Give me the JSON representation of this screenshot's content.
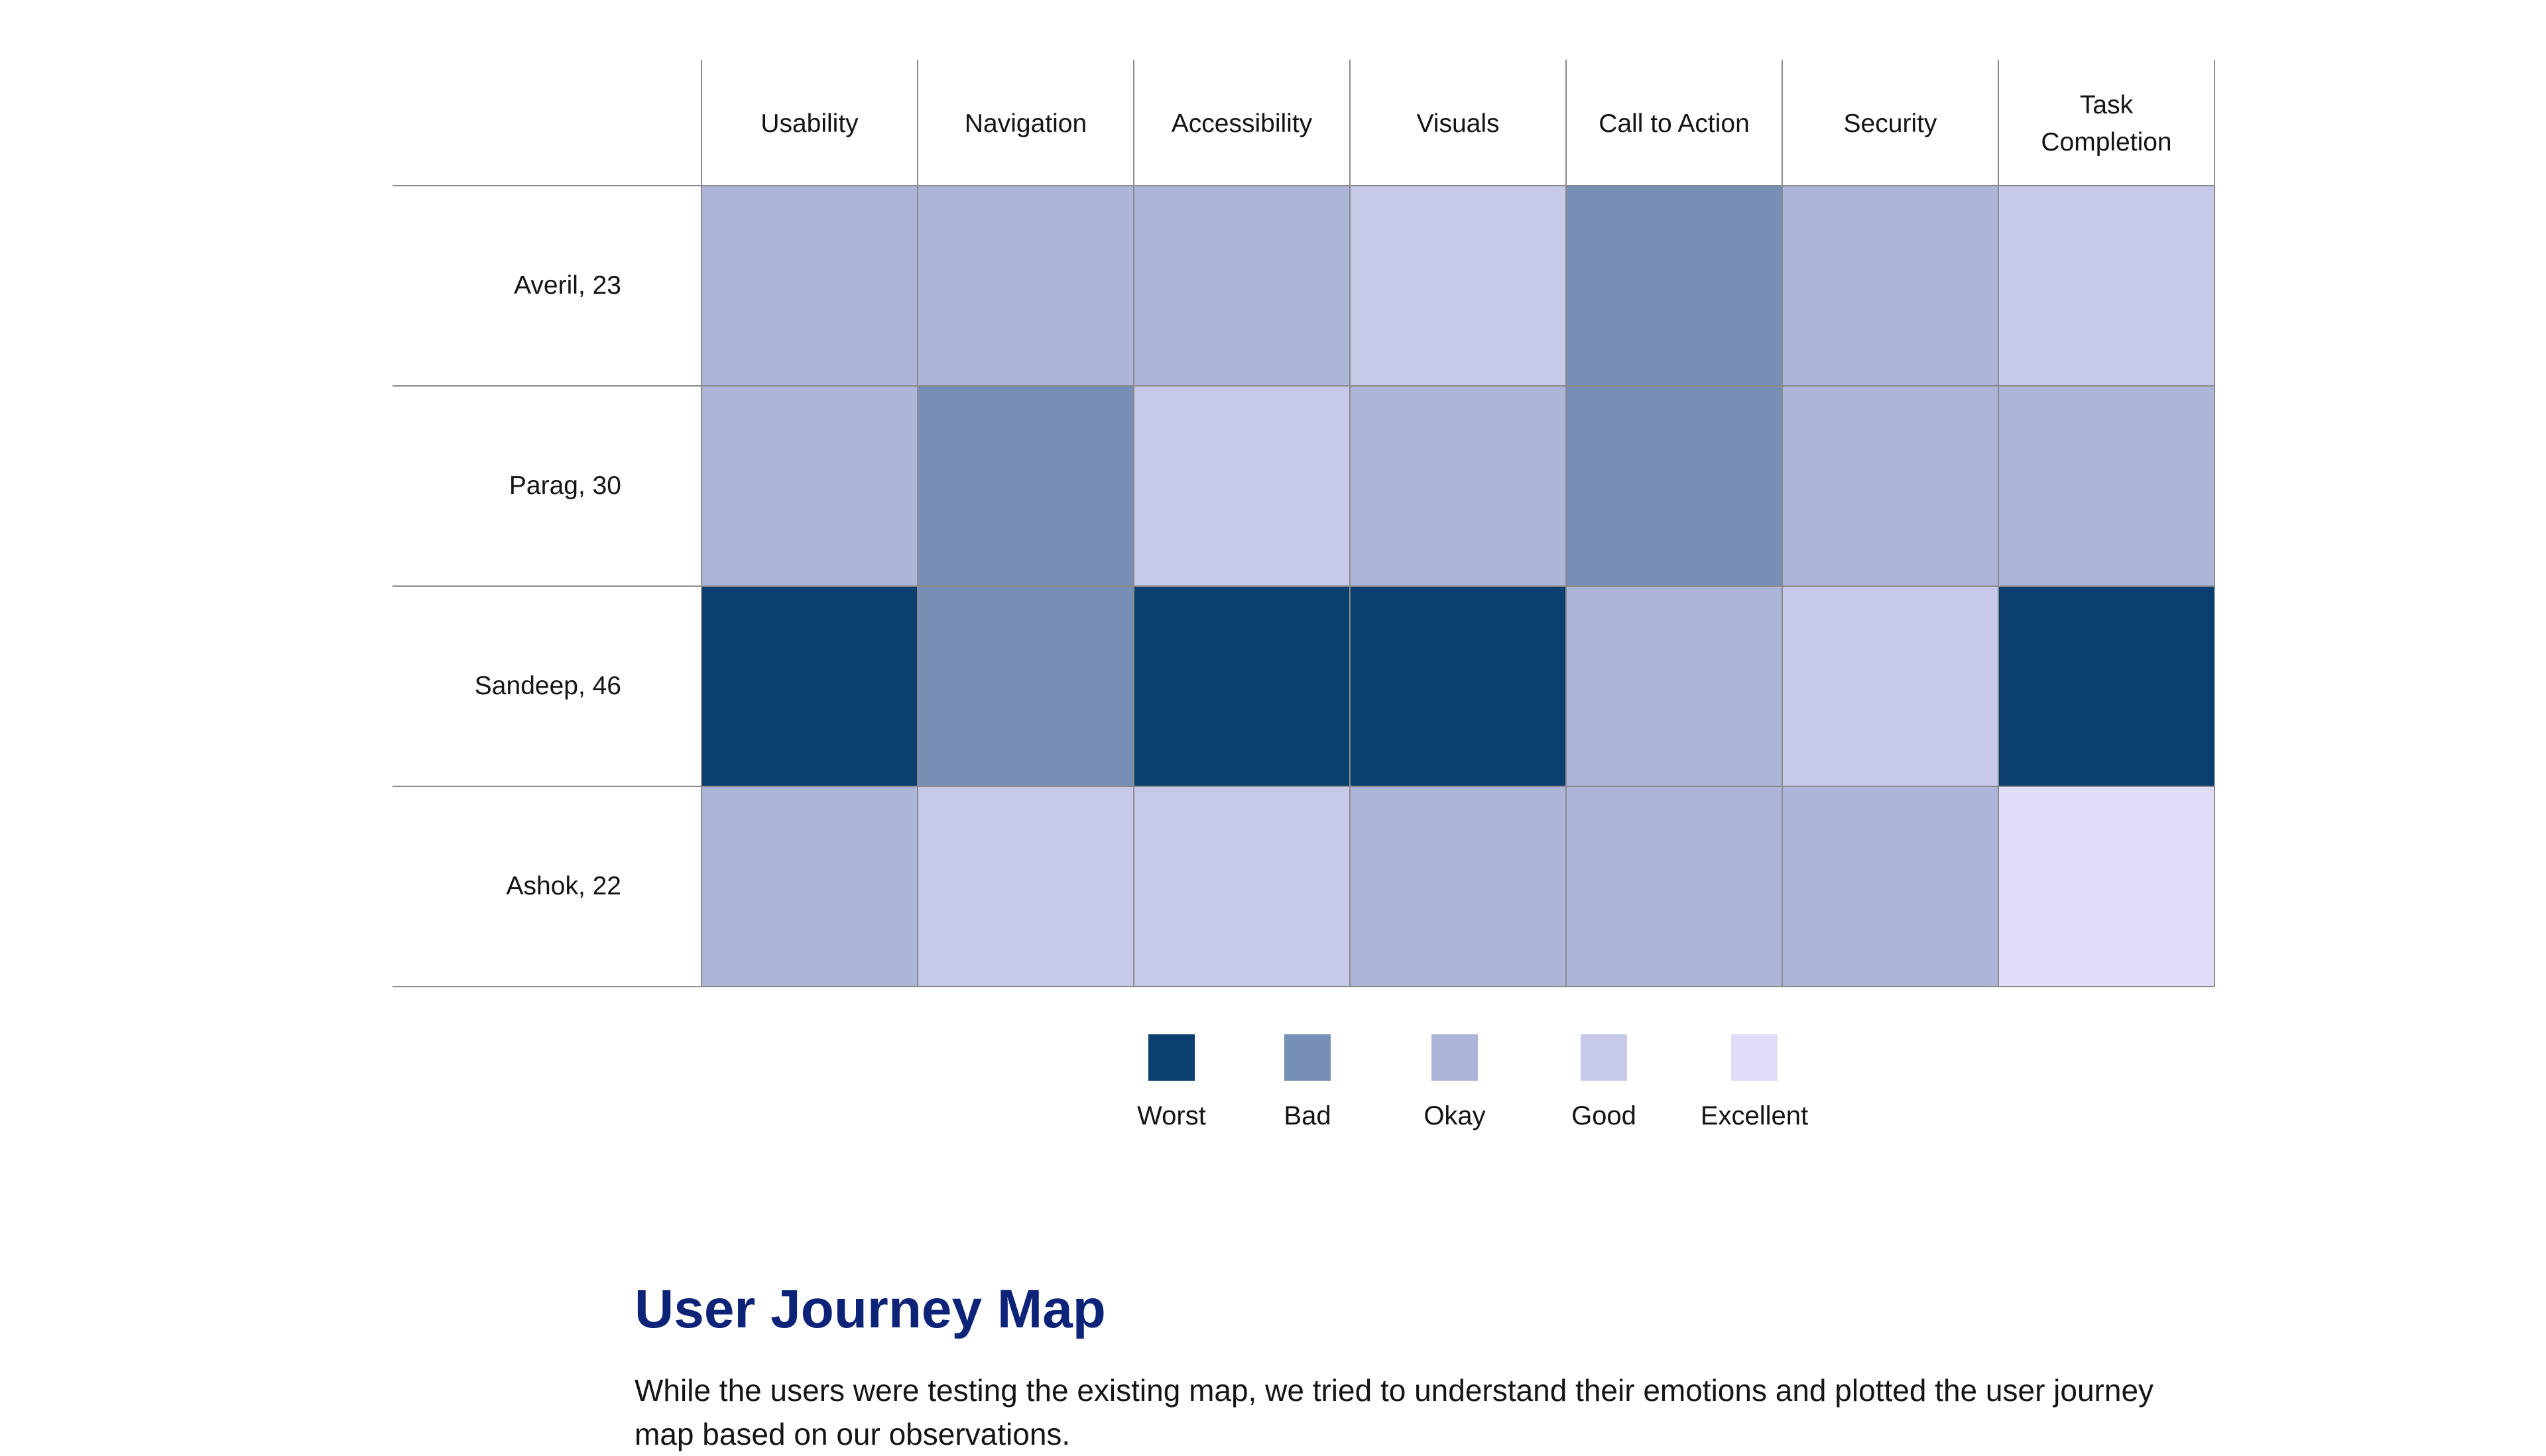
{
  "chart_data": {
    "type": "heatmap",
    "columns": [
      "Usability",
      "Navigation",
      "Accessibility",
      "Visuals",
      "Call to Action",
      "Security",
      "Task Completion"
    ],
    "column_label_lines": [
      [
        "Usability"
      ],
      [
        "Navigation"
      ],
      [
        "Accessibility"
      ],
      [
        "Visuals"
      ],
      [
        "Call to Action"
      ],
      [
        "Security"
      ],
      [
        "Task",
        "Completion"
      ]
    ],
    "rows": [
      "Averil, 23",
      "Parag, 30",
      "Sandeep, 46",
      "Ashok, 22"
    ],
    "levels": [
      "Worst",
      "Bad",
      "Okay",
      "Good",
      "Excellent"
    ],
    "level_colors": [
      "#0a3f6f",
      "#778eb5",
      "#adb6d9",
      "#c7c9e9",
      "#e1ddf8"
    ],
    "values": [
      [
        "Okay",
        "Okay",
        "Okay",
        "Good",
        "Bad",
        "Okay",
        "Good"
      ],
      [
        "Okay",
        "Bad",
        "Good",
        "Okay",
        "Bad",
        "Okay",
        "Okay"
      ],
      [
        "Worst",
        "Bad",
        "Worst",
        "Worst",
        "Okay",
        "Good",
        "Worst"
      ],
      [
        "Okay",
        "Good",
        "Good",
        "Okay",
        "Okay",
        "Okay",
        "Excellent"
      ]
    ]
  },
  "section": {
    "title": "User Journey Map",
    "body": "While the users were testing the existing map, we tried to understand their emotions and plotted the user journey map based on our observations."
  }
}
